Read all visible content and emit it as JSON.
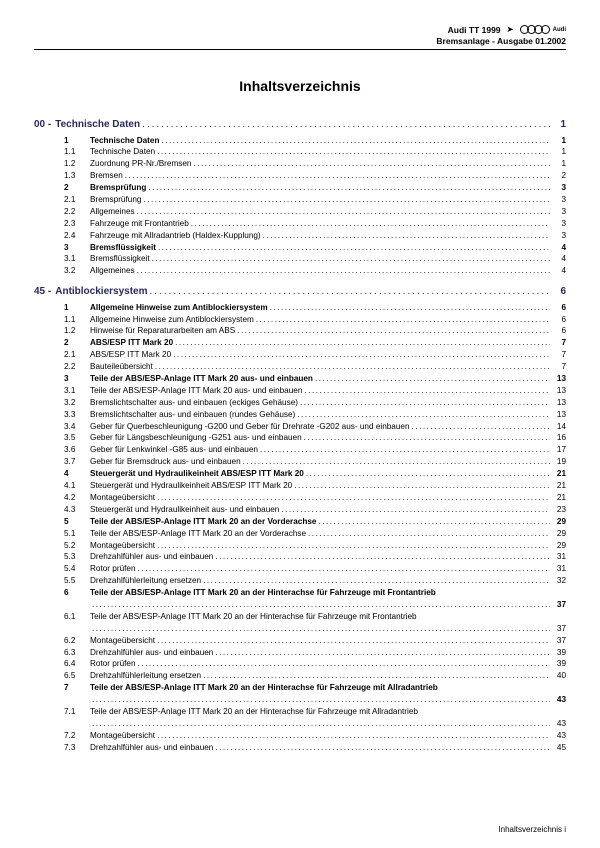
{
  "header": {
    "model": "Audi TT 1999",
    "arrow": "➤",
    "subtitle": "Bremsanlage - Ausgabe 01.2002",
    "brand": "Audi"
  },
  "title": "Inhaltsverzeichnis",
  "footer": "Inhaltsverzeichnis   i",
  "sections": [
    {
      "num": "00 -",
      "label": "Technische Daten",
      "page": "1",
      "entries": [
        {
          "num": "1",
          "label": "Technische Daten",
          "page": "1",
          "bold": true
        },
        {
          "num": "1.1",
          "label": "Technische Daten",
          "page": "1"
        },
        {
          "num": "1.2",
          "label": "Zuordnung PR-Nr./Bremsen",
          "page": "1"
        },
        {
          "num": "1.3",
          "label": "Bremsen",
          "page": "2"
        },
        {
          "num": "2",
          "label": "Bremsprüfung",
          "page": "3",
          "bold": true
        },
        {
          "num": "2.1",
          "label": "Bremsprüfung",
          "page": "3"
        },
        {
          "num": "2.2",
          "label": "Allgemeines",
          "page": "3"
        },
        {
          "num": "2.3",
          "label": "Fahrzeuge mit Frontantrieb",
          "page": "3"
        },
        {
          "num": "2.4",
          "label": "Fahrzeuge mit Allradantrieb (Haldex-Kupplung)",
          "page": "3"
        },
        {
          "num": "3",
          "label": "Bremsflüssigkeit",
          "page": "4",
          "bold": true
        },
        {
          "num": "3.1",
          "label": "Bremsflüssigkeit",
          "page": "4"
        },
        {
          "num": "3.2",
          "label": "Allgemeines",
          "page": "4"
        }
      ]
    },
    {
      "num": "45 -",
      "label": "Antiblockiersystem",
      "page": "6",
      "entries": [
        {
          "num": "1",
          "label": "Allgemeine Hinweise zum Antiblockiersystem",
          "page": "6",
          "bold": true
        },
        {
          "num": "1.1",
          "label": "Allgemeine Hinweise zum Antiblockiersystem",
          "page": "6"
        },
        {
          "num": "1.2",
          "label": "Hinweise für Reparaturarbeiten am ABS",
          "page": "6"
        },
        {
          "num": "2",
          "label": "ABS/ESP ITT Mark 20",
          "page": "7",
          "bold": true
        },
        {
          "num": "2.1",
          "label": "ABS/ESP ITT Mark 20",
          "page": "7"
        },
        {
          "num": "2.2",
          "label": "Bauteileübersicht",
          "page": "7"
        },
        {
          "num": "3",
          "label": "Teile der ABS/ESP-Anlage ITT Mark 20 aus- und einbauen",
          "page": "13",
          "bold": true
        },
        {
          "num": "3.1",
          "label": "Teile der ABS/ESP-Anlage ITT Mark 20 aus- und einbauen",
          "page": "13"
        },
        {
          "num": "3.2",
          "label": "Bremslichtschalter aus- und einbauen (eckiges Gehäuse)",
          "page": "13"
        },
        {
          "num": "3.3",
          "label": "Bremslichtschalter aus- und einbauen (rundes Gehäuse)",
          "page": "13"
        },
        {
          "num": "3.4",
          "label": "Geber für Querbeschleunigung -G200 und Geber für Drehrate -G202 aus- und einbauen",
          "page": "14"
        },
        {
          "num": "3.5",
          "label": "Geber für Längsbeschleunigung -G251 aus- und einbauen",
          "page": "16"
        },
        {
          "num": "3.6",
          "label": "Geber für Lenkwinkel -G85 aus- und einbauen",
          "page": "17"
        },
        {
          "num": "3.7",
          "label": "Geber für Bremsdruck aus- und einbauen",
          "page": "19"
        },
        {
          "num": "4",
          "label": "Steuergerät und Hydraulikeinheit ABS/ESP ITT Mark 20",
          "page": "21",
          "bold": true
        },
        {
          "num": "4.1",
          "label": "Steuergerät und Hydraulikeinheit ABS/ESP ITT Mark 20",
          "page": "21"
        },
        {
          "num": "4.2",
          "label": "Montageübersicht",
          "page": "21"
        },
        {
          "num": "4.3",
          "label": "Steuergerät und Hydraulikeinheit aus- und einbauen",
          "page": "23"
        },
        {
          "num": "5",
          "label": "Teile der ABS/ESP-Anlage ITT Mark 20 an der Vorderachse",
          "page": "29",
          "bold": true
        },
        {
          "num": "5.1",
          "label": "Teile der ABS/ESP-Anlage ITT Mark 20 an der Vorderachse",
          "page": "29"
        },
        {
          "num": "5.2",
          "label": "Montageübersicht",
          "page": "29"
        },
        {
          "num": "5.3",
          "label": "Drehzahlfühler aus- und einbauen",
          "page": "31"
        },
        {
          "num": "5.4",
          "label": "Rotor prüfen",
          "page": "31"
        },
        {
          "num": "5.5",
          "label": "Drehzahlfühlerleitung ersetzen",
          "page": "32"
        },
        {
          "num": "6",
          "label": "Teile der ABS/ESP-Anlage ITT Mark 20 an der Hinterachse für Fahrzeuge mit Frontantrieb",
          "page": "37",
          "bold": true,
          "wrap": true
        },
        {
          "num": "6.1",
          "label": "Teile der ABS/ESP-Anlage ITT Mark 20 an der Hinterachse für Fahrzeuge mit Frontantrieb",
          "page": "37",
          "wrap": true
        },
        {
          "num": "6.2",
          "label": "Montageübersicht",
          "page": "37"
        },
        {
          "num": "6.3",
          "label": "Drehzahlfühler aus- und einbauen",
          "page": "39"
        },
        {
          "num": "6.4",
          "label": "Rotor prüfen",
          "page": "39"
        },
        {
          "num": "6.5",
          "label": "Drehzahlfühlerleitung ersetzen",
          "page": "40"
        },
        {
          "num": "7",
          "label": "Teile der ABS/ESP-Anlage ITT Mark 20 an der Hinterachse für Fahrzeuge mit Allradantrieb",
          "page": "43",
          "bold": true,
          "wrap": true
        },
        {
          "num": "7.1",
          "label": "Teile der ABS/ESP-Anlage ITT Mark 20 an der Hinterachse für Fahrzeuge mit Allradantrieb",
          "page": "43",
          "wrap": true
        },
        {
          "num": "7.2",
          "label": "Montageübersicht",
          "page": "43"
        },
        {
          "num": "7.3",
          "label": "Drehzahlfühler aus- und einbauen",
          "page": "45"
        }
      ]
    }
  ]
}
